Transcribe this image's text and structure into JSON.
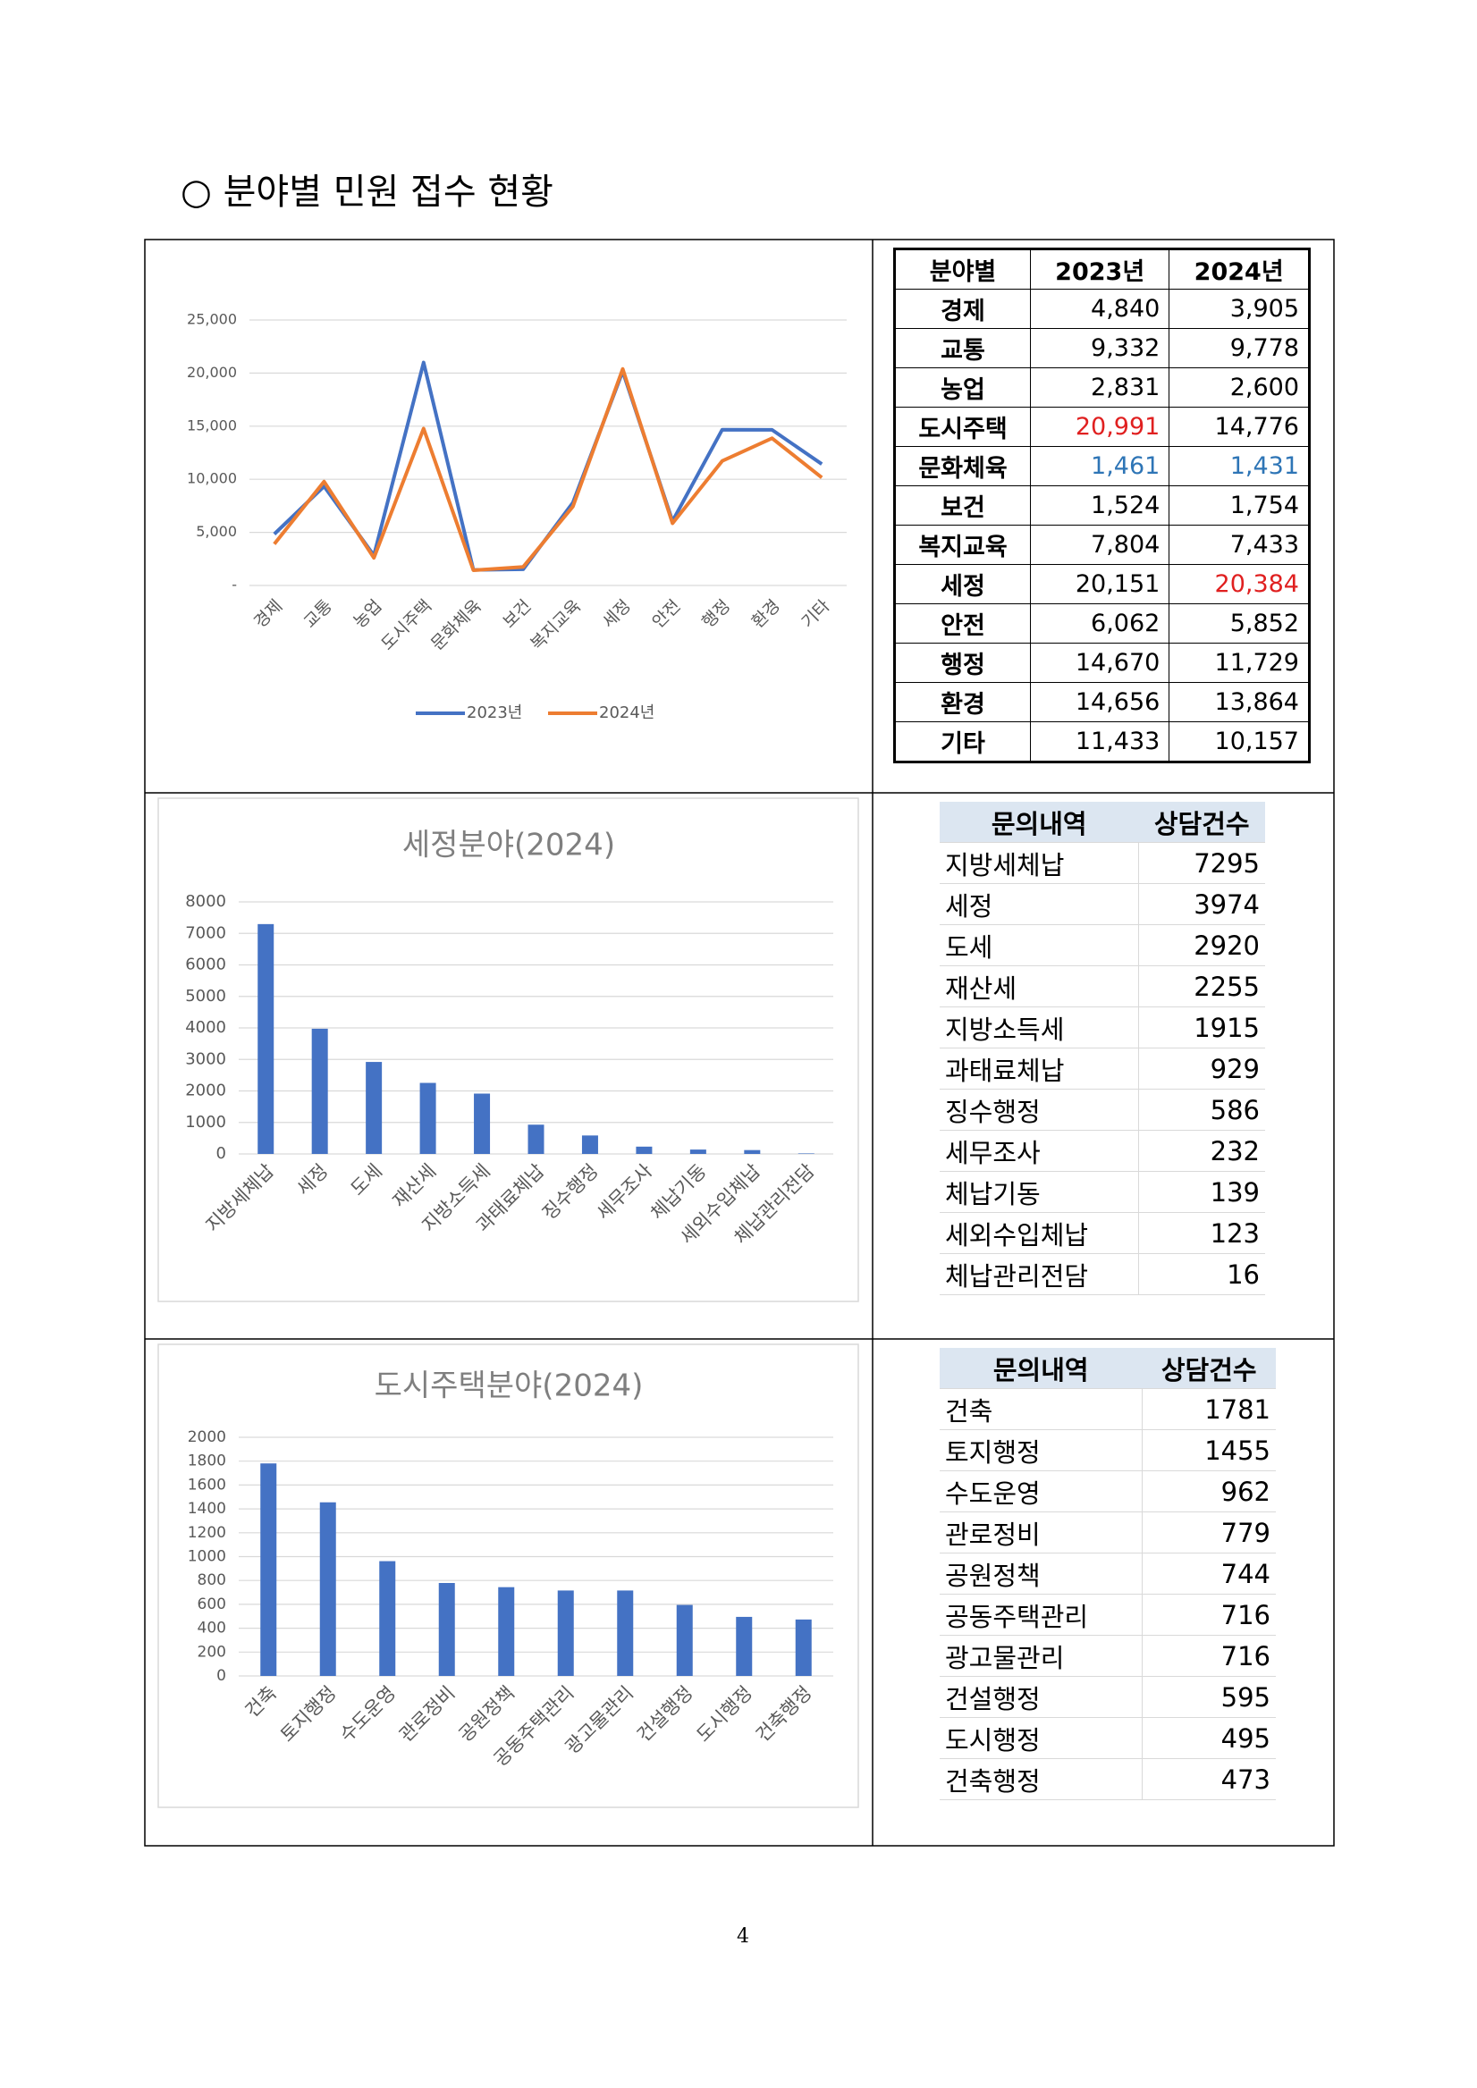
{
  "heading": "○ 분야별 민원 접수 현황",
  "chart_data": [
    {
      "type": "line",
      "categories": [
        "경제",
        "교통",
        "농업",
        "도시주택",
        "문화체육",
        "보건",
        "복지교육",
        "세정",
        "안전",
        "행정",
        "환경",
        "기타"
      ],
      "series": [
        {
          "name": "2023년",
          "color": "#4472c4",
          "values": [
            4840,
            9332,
            2831,
            20991,
            1461,
            1524,
            7804,
            20151,
            6062,
            14670,
            14656,
            11433
          ]
        },
        {
          "name": "2024년",
          "color": "#ed7d31",
          "values": [
            3905,
            9778,
            2600,
            14776,
            1431,
            1754,
            7433,
            20384,
            5852,
            11729,
            13864,
            10157
          ]
        }
      ],
      "ylim": [
        0,
        25000
      ],
      "yticks": [
        {
          "value": 0,
          "label": "-"
        },
        {
          "value": 5000,
          "label": "5,000"
        },
        {
          "value": 10000,
          "label": "10,000"
        },
        {
          "value": 15000,
          "label": "15,000"
        },
        {
          "value": 20000,
          "label": "20,000"
        },
        {
          "value": 25000,
          "label": "25,000"
        }
      ],
      "grid": true,
      "legend": "bottom"
    },
    {
      "type": "bar",
      "title": "세정분야(2024)",
      "categories": [
        "지방세체납",
        "세정",
        "도세",
        "재산세",
        "지방소득세",
        "과태료체납",
        "징수행정",
        "세무조사",
        "체납기동",
        "세외수입체납",
        "체납관리전담"
      ],
      "values": [
        7295,
        3974,
        2920,
        2255,
        1915,
        929,
        586,
        232,
        139,
        123,
        16
      ],
      "color": "#4472c4",
      "ylim": [
        0,
        8000
      ],
      "yticks": [
        0,
        1000,
        2000,
        3000,
        4000,
        5000,
        6000,
        7000,
        8000
      ],
      "grid": true
    },
    {
      "type": "bar",
      "title": "도시주택분야(2024)",
      "categories": [
        "건축",
        "토지행정",
        "수도운영",
        "관로정비",
        "공원정책",
        "공동주택관리",
        "광고물관리",
        "건설행정",
        "도시행정",
        "건축행정"
      ],
      "values": [
        1781,
        1455,
        962,
        779,
        744,
        716,
        716,
        595,
        495,
        473
      ],
      "color": "#4472c4",
      "ylim": [
        0,
        2000
      ],
      "yticks": [
        0,
        200,
        400,
        600,
        800,
        1000,
        1200,
        1400,
        1600,
        1800,
        2000
      ],
      "grid": true
    }
  ],
  "tables": [
    {
      "header": "분야별",
      "cells": [
        [
          "4,840",
          "3,905"
        ],
        [
          "9,332",
          "9,778"
        ],
        [
          "2,831",
          "2,600"
        ],
        [
          "20,991",
          "14,776"
        ],
        [
          "1,461",
          "1,431"
        ],
        [
          "1,524",
          "1,754"
        ],
        [
          "7,804",
          "7,433"
        ],
        [
          "20,151",
          "20,384"
        ],
        [
          "6,062",
          "5,852"
        ],
        [
          "14,670",
          "11,729"
        ],
        [
          "14,656",
          "13,864"
        ],
        [
          "11,433",
          "10,157"
        ]
      ]
    },
    {
      "header": [
        "문의내역",
        "상담건수"
      ]
    },
    {
      "header": [
        "문의내역",
        "상담건수"
      ]
    }
  ],
  "page_number": "4"
}
